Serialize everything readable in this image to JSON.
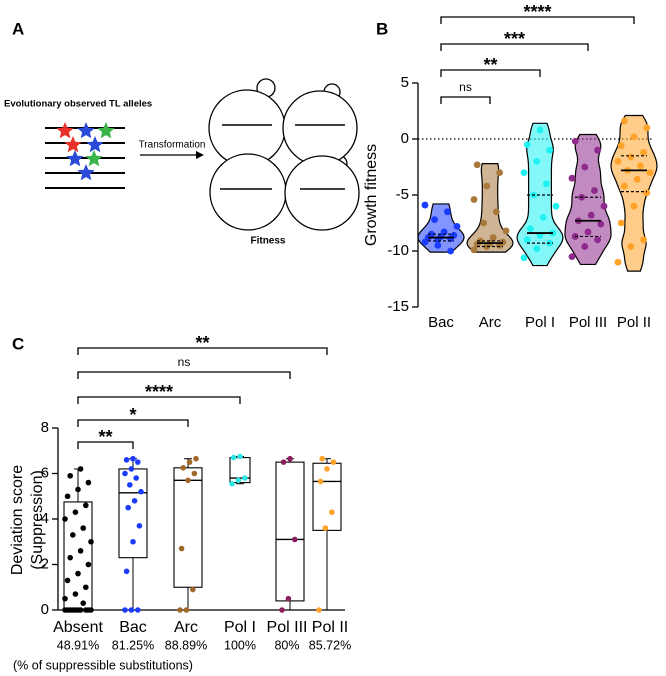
{
  "diagram": {
    "panel_label": "A",
    "input_label": "Evolutionary observed TL alleles",
    "arrow_label": "Transformation",
    "output_label": "Fitness"
  },
  "chart_data": [
    {
      "type": "violin",
      "panel_label": "B",
      "ylabel": "Growth fitness",
      "categories": [
        "Bac",
        "Arc",
        "Pol I",
        "Pol III",
        "Pol II"
      ],
      "groups": [
        {
          "color": "#1a3cff",
          "min": -10.1,
          "q1": -9.1,
          "median": -8.8,
          "q3": -8.5,
          "max": -5.8,
          "values": [
            -9.2,
            -9.0,
            -8.9,
            -8.8,
            -8.7,
            -8.6,
            -8.5,
            -8.3,
            -7.8,
            -7.2,
            -6.5,
            -5.9,
            -9.5,
            -10.0
          ]
        },
        {
          "color": "#a8793a",
          "min": -10.1,
          "q1": -9.6,
          "median": -9.3,
          "q3": -9.1,
          "max": -2.2,
          "values": [
            -9.9,
            -9.6,
            -9.5,
            -9.4,
            -9.3,
            -9.2,
            -9.1,
            -8.8,
            -8.2,
            -7.5,
            -6.5,
            -5.4,
            -4.2,
            -3.0,
            -2.3
          ]
        },
        {
          "color": "#1ff2f2",
          "min": -11.3,
          "q1": -9.3,
          "median": -8.4,
          "q3": -5.0,
          "max": 1.4,
          "values": [
            -10.6,
            -9.8,
            -9.3,
            -9.0,
            -8.6,
            -8.4,
            -8.0,
            -7.0,
            -6.0,
            -5.0,
            -4.0,
            -3.0,
            -2.0,
            -1.0,
            -0.5,
            0.8
          ]
        },
        {
          "color": "#8e2a8c",
          "min": -11.2,
          "q1": -8.7,
          "median": -7.3,
          "q3": -5.2,
          "max": 0.4,
          "values": [
            -10.5,
            -9.6,
            -9.0,
            -8.7,
            -8.3,
            -7.6,
            -7.3,
            -6.8,
            -6.0,
            -5.2,
            -4.6,
            -3.5,
            -2.5,
            -1.0,
            -0.2
          ]
        },
        {
          "color": "#ffa228",
          "min": -11.8,
          "q1": -4.7,
          "median": -2.8,
          "q3": -1.5,
          "max": 2.1,
          "values": [
            -11.0,
            -9.6,
            -9.0,
            -7.5,
            -6.0,
            -4.8,
            -4.2,
            -3.6,
            -3.0,
            -2.8,
            -2.4,
            -2.0,
            -1.6,
            -1.2,
            -0.6,
            0.2,
            1.0,
            1.6
          ]
        }
      ],
      "ylim": [
        -15,
        5
      ],
      "yticks": [
        -15,
        -10,
        -5,
        0,
        5
      ],
      "refline": 0,
      "brackets": [
        {
          "label": "****",
          "from": "Bac",
          "to": "Pol II"
        },
        {
          "label": "***",
          "from": "Bac",
          "to": "Pol III"
        },
        {
          "label": "**",
          "from": "Bac",
          "to": "Pol I"
        },
        {
          "label": "ns",
          "from": "Bac",
          "to": "Arc"
        }
      ]
    },
    {
      "type": "box",
      "panel_label": "C",
      "ylabel": [
        "Deviation score",
        "(Suppression)"
      ],
      "categories": [
        "Absent",
        "Bac",
        "Arc",
        "Pol I",
        "Pol III",
        "Pol II"
      ],
      "sublabels": [
        "48.91%",
        "81.25%",
        "88.89%",
        "100%",
        "80%",
        "85.72%"
      ],
      "note": "(% of suppressible substitutions)",
      "groups": [
        {
          "color": "#000000",
          "min": 0,
          "q1": 0,
          "median": 0,
          "q3": 4.75,
          "max": 6.2,
          "values": [
            0,
            0,
            0,
            0,
            0,
            0,
            0,
            0,
            0,
            0,
            0.3,
            0.5,
            0.7,
            1.0,
            1.3,
            1.6,
            2.0,
            2.3,
            2.6,
            3.0,
            3.3,
            3.6,
            4.0,
            4.3,
            4.6,
            5.0,
            5.3,
            5.6,
            5.9,
            6.2
          ]
        },
        {
          "color": "#1a3cff",
          "min": 0,
          "q1": 2.3,
          "median": 5.15,
          "q3": 6.2,
          "max": 6.65,
          "values": [
            0,
            0,
            0,
            1.7,
            3.0,
            3.7,
            4.5,
            4.8,
            5.2,
            5.5,
            5.8,
            6.0,
            6.2,
            6.5,
            6.6,
            6.65
          ]
        },
        {
          "color": "#a0672a",
          "min": 0,
          "q1": 1.0,
          "median": 5.7,
          "q3": 6.25,
          "max": 6.65,
          "values": [
            0,
            0,
            0.9,
            2.7,
            5.7,
            6.0,
            6.25,
            6.5,
            6.65
          ]
        },
        {
          "color": "#2ee6e6",
          "min": 5.55,
          "q1": 5.6,
          "median": 5.8,
          "q3": 6.7,
          "max": 6.75,
          "values": [
            5.55,
            5.7,
            5.8,
            6.7,
            6.75
          ]
        },
        {
          "color": "#8b1f5e",
          "min": 0,
          "q1": 0.4,
          "median": 3.1,
          "q3": 6.5,
          "max": 6.65,
          "values": [
            0,
            0.5,
            3.1,
            6.5,
            6.65
          ]
        },
        {
          "color": "#ffa228",
          "min": 0,
          "q1": 3.5,
          "median": 5.65,
          "q3": 6.45,
          "max": 6.65,
          "values": [
            0,
            3.6,
            4.3,
            5.65,
            6.2,
            6.5,
            6.65
          ]
        }
      ],
      "ylim": [
        0,
        8
      ],
      "yticks": [
        0,
        2,
        4,
        6,
        8
      ],
      "brackets": [
        {
          "label": "**",
          "from": "Absent",
          "to": "Pol II"
        },
        {
          "label": "ns",
          "from": "Absent",
          "to": "Pol III"
        },
        {
          "label": "****",
          "from": "Absent",
          "to": "Pol I"
        },
        {
          "label": "*",
          "from": "Absent",
          "to": "Arc"
        },
        {
          "label": "**",
          "from": "Absent",
          "to": "Bac"
        }
      ]
    }
  ]
}
